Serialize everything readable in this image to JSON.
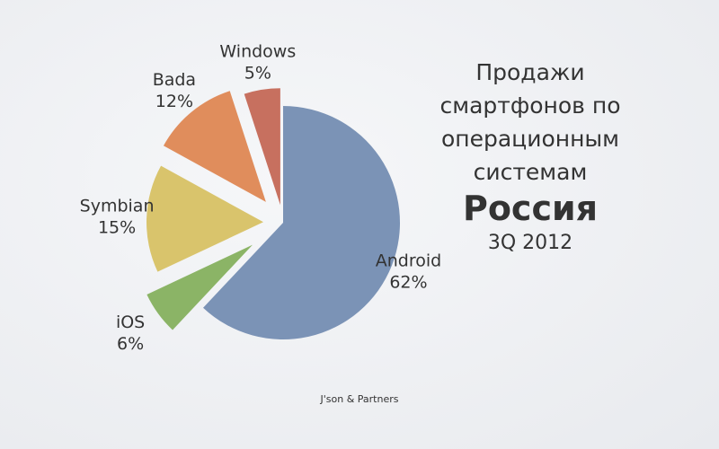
{
  "chart_data": {
    "type": "pie",
    "title": "Продажи смартфонов по операционным системам",
    "subtitle": "Россия",
    "period": "3Q 2012",
    "source": "J'son & Partners",
    "categories": [
      "Android",
      "iOS",
      "Symbian",
      "Bada",
      "Windows"
    ],
    "values": [
      62,
      6,
      15,
      12,
      5
    ],
    "value_labels": [
      "62%",
      "6%",
      "15%",
      "12%",
      "5%"
    ],
    "colors": [
      "#7b93b6",
      "#8bb466",
      "#d9c46c",
      "#e08d5c",
      "#c7705f"
    ]
  }
}
